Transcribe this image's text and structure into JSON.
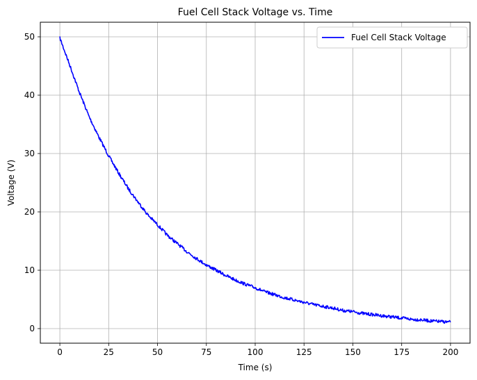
{
  "chart_data": {
    "type": "line",
    "title": "Fuel Cell Stack Voltage vs. Time",
    "xlabel": "Time (s)",
    "ylabel": "Voltage (V)",
    "xlim": [
      -10,
      210
    ],
    "ylim": [
      -2.5,
      52.5
    ],
    "xticks": [
      0,
      25,
      50,
      75,
      100,
      125,
      150,
      175,
      200
    ],
    "yticks": [
      0,
      10,
      20,
      30,
      40,
      50
    ],
    "grid": true,
    "legend_position": "top-right",
    "series": [
      {
        "name": "Fuel Cell Stack Voltage",
        "color": "#0000ff",
        "x": [
          0,
          5,
          10,
          15,
          20,
          25,
          30,
          35,
          40,
          45,
          50,
          55,
          60,
          65,
          70,
          75,
          80,
          85,
          90,
          95,
          100,
          105,
          110,
          115,
          120,
          125,
          130,
          135,
          140,
          145,
          150,
          155,
          160,
          165,
          170,
          175,
          180,
          185,
          190,
          195,
          200
        ],
        "y": [
          49.8,
          45.2,
          40.5,
          36.3,
          32.8,
          29.6,
          26.7,
          24.0,
          21.7,
          19.5,
          17.8,
          16.0,
          14.6,
          13.2,
          12.0,
          10.9,
          10.0,
          9.1,
          8.3,
          7.6,
          7.0,
          6.3,
          5.8,
          5.3,
          4.9,
          4.5,
          4.1,
          3.8,
          3.5,
          3.1,
          2.9,
          2.6,
          2.4,
          2.2,
          2.0,
          1.8,
          1.6,
          1.5,
          1.3,
          1.2,
          1.1
        ]
      }
    ]
  }
}
